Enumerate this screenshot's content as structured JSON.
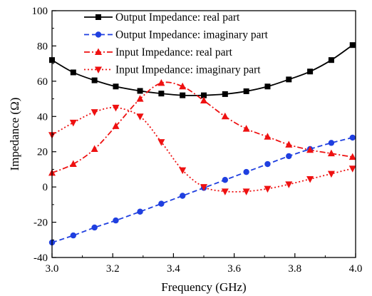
{
  "chart_data": {
    "type": "line",
    "title": "",
    "xlabel": "Frequency (GHz)",
    "ylabel": "Impedance (Ω)",
    "xlim": [
      3.0,
      4.0
    ],
    "ylim": [
      -40,
      100
    ],
    "xticks": [
      "3.0",
      "3.2",
      "3.4",
      "3.6",
      "3.8",
      "4.0"
    ],
    "xtick_values": [
      3.0,
      3.2,
      3.4,
      3.6,
      3.8,
      4.0
    ],
    "yticks": [
      "-40",
      "-20",
      "0",
      "20",
      "40",
      "60",
      "80",
      "100"
    ],
    "ytick_values": [
      -40,
      -20,
      0,
      20,
      40,
      60,
      80,
      100
    ],
    "grid": false,
    "legend_position": "top-left",
    "series": [
      {
        "name": "Output Impedance: real part",
        "color": "#000000",
        "line_style": "solid",
        "marker": "square",
        "x": [
          3.0,
          3.07,
          3.14,
          3.21,
          3.29,
          3.36,
          3.43,
          3.5,
          3.57,
          3.64,
          3.71,
          3.78,
          3.85,
          3.92,
          3.99
        ],
        "y": [
          72,
          65,
          60.5,
          57,
          54.5,
          53,
          52,
          52,
          52.7,
          54.3,
          57,
          61,
          65.5,
          72,
          80.5
        ]
      },
      {
        "name": "Output Impedance: imaginary part",
        "color": "#1f3fe0",
        "line_style": "dashed",
        "marker": "circle",
        "x": [
          3.0,
          3.07,
          3.14,
          3.21,
          3.29,
          3.36,
          3.43,
          3.5,
          3.57,
          3.64,
          3.71,
          3.78,
          3.85,
          3.92,
          3.99
        ],
        "y": [
          -31.5,
          -27.5,
          -23,
          -19,
          -14,
          -9.5,
          -5,
          -0.5,
          4,
          8.5,
          13,
          17.5,
          21.5,
          25,
          28
        ]
      },
      {
        "name": "Input Impedance: real part",
        "color": "#ee1111",
        "line_style": "dash-dot",
        "marker": "triangle-up",
        "x": [
          3.0,
          3.07,
          3.14,
          3.21,
          3.29,
          3.36,
          3.43,
          3.5,
          3.57,
          3.64,
          3.71,
          3.78,
          3.85,
          3.92,
          3.99
        ],
        "y": [
          8,
          13,
          21.5,
          34.5,
          50,
          59,
          57,
          49,
          40,
          33,
          28.5,
          24,
          21,
          19,
          17
        ]
      },
      {
        "name": "Input Impedance: imaginary part",
        "color": "#ee1111",
        "line_style": "dotted",
        "marker": "triangle-down",
        "x": [
          3.0,
          3.07,
          3.14,
          3.21,
          3.29,
          3.36,
          3.43,
          3.5,
          3.57,
          3.64,
          3.71,
          3.78,
          3.85,
          3.92,
          3.99
        ],
        "y": [
          29.5,
          36.5,
          42.5,
          45,
          40,
          25.5,
          9.5,
          0,
          -2.5,
          -2.5,
          -1,
          1.5,
          4.5,
          7.5,
          10.5
        ]
      }
    ]
  }
}
